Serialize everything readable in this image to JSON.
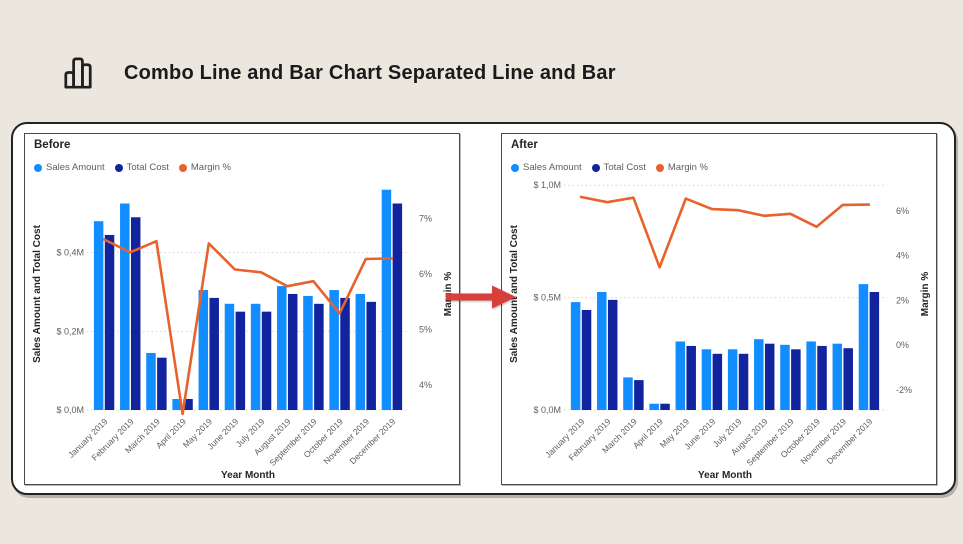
{
  "header": {
    "icon": "bar-chart-icon",
    "title": "Combo Line and Bar Chart Separated Line and Bar"
  },
  "transition_arrow": {
    "direction": "right",
    "color": "#D7403A"
  },
  "colors": {
    "page_bg": "#EBE7DF",
    "card_bg": "#FFFFFF",
    "grid": "#D8D5D2",
    "tick_text": "#605E5C",
    "axis_title_text": "#252423"
  },
  "chart_data": [
    {
      "type": "combo",
      "panel": "Before",
      "categories": [
        "January 2019",
        "February 2019",
        "March 2019",
        "April 2019",
        "May 2019",
        "June 2019",
        "July 2019",
        "August 2019",
        "September 2019",
        "October 2019",
        "November 2019",
        "December 2019"
      ],
      "series": [
        {
          "name": "Sales Amount",
          "type": "bar",
          "axis": "primary",
          "color": "#118DFF",
          "values": [
            0.48,
            0.525,
            0.145,
            0.028,
            0.305,
            0.27,
            0.27,
            0.315,
            0.29,
            0.305,
            0.295,
            0.56
          ]
        },
        {
          "name": "Total Cost",
          "type": "bar",
          "axis": "primary",
          "color": "#12239E",
          "values": [
            0.445,
            0.49,
            0.133,
            0.028,
            0.285,
            0.25,
            0.25,
            0.295,
            0.27,
            0.285,
            0.275,
            0.525
          ]
        },
        {
          "name": "Margin %",
          "type": "line",
          "axis": "secondary",
          "color": "#E8622D",
          "values": [
            6.62,
            6.39,
            6.59,
            3.48,
            6.55,
            6.08,
            6.03,
            5.78,
            5.87,
            5.29,
            6.27,
            6.28
          ]
        }
      ],
      "primary_axis": {
        "title": "Sales Amount and Total Cost",
        "min": 0,
        "max": 0.6,
        "ticks": [
          {
            "v": 0,
            "label": "$ 0,0M"
          },
          {
            "v": 0.2,
            "label": "$ 0,2M"
          },
          {
            "v": 0.4,
            "label": "$ 0,4M"
          }
        ]
      },
      "secondary_axis": {
        "title": "Margin %",
        "min": 3.55,
        "max": 7.8,
        "ticks": [
          {
            "v": 4,
            "label": "4%"
          },
          {
            "v": 5,
            "label": "5%"
          },
          {
            "v": 6,
            "label": "6%"
          },
          {
            "v": 7,
            "label": "7%"
          }
        ]
      },
      "x_axis": {
        "title": "Year Month"
      }
    },
    {
      "type": "combo",
      "panel": "After",
      "categories": [
        "January 2019",
        "February 2019",
        "March 2019",
        "April 2019",
        "May 2019",
        "June 2019",
        "July 2019",
        "August 2019",
        "September 2019",
        "October 2019",
        "November 2019",
        "December 2019"
      ],
      "series": [
        {
          "name": "Sales Amount",
          "type": "bar",
          "axis": "primary",
          "color": "#118DFF",
          "values": [
            0.48,
            0.525,
            0.145,
            0.028,
            0.305,
            0.27,
            0.27,
            0.315,
            0.29,
            0.305,
            0.295,
            0.56
          ]
        },
        {
          "name": "Total Cost",
          "type": "bar",
          "axis": "primary",
          "color": "#12239E",
          "values": [
            0.445,
            0.49,
            0.133,
            0.028,
            0.285,
            0.25,
            0.25,
            0.295,
            0.27,
            0.285,
            0.275,
            0.525
          ]
        },
        {
          "name": "Margin %",
          "type": "line",
          "axis": "secondary",
          "color": "#E8622D",
          "values": [
            6.62,
            6.39,
            6.59,
            3.48,
            6.55,
            6.08,
            6.03,
            5.78,
            5.87,
            5.29,
            6.27,
            6.28
          ]
        }
      ],
      "primary_axis": {
        "title": "Sales Amount and Total Cost",
        "min": 0,
        "max": 1.05,
        "ticks": [
          {
            "v": 0,
            "label": "$ 0,0M"
          },
          {
            "v": 0.5,
            "label": "$ 0,5M"
          },
          {
            "v": 1.0,
            "label": "$ 1,0M"
          }
        ]
      },
      "secondary_axis": {
        "title": "Margin %",
        "min": -2.9,
        "max": 7.65,
        "ticks": [
          {
            "v": -2,
            "label": "-2%"
          },
          {
            "v": 0,
            "label": "0%"
          },
          {
            "v": 2,
            "label": "2%"
          },
          {
            "v": 4,
            "label": "4%"
          },
          {
            "v": 6,
            "label": "6%"
          }
        ]
      },
      "x_axis": {
        "title": "Year Month"
      }
    }
  ]
}
